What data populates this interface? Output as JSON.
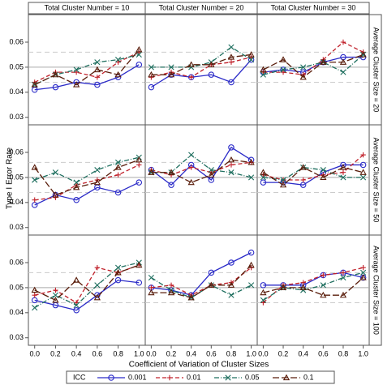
{
  "chart_data": {
    "type": "line",
    "x_label": "Coefficient of Variation of Cluster Sizes",
    "y_label": "Type I Error Rate",
    "legend_title": "ICC",
    "columns": [
      "Total Cluster Number = 10",
      "Total Cluster Number = 20",
      "Total Cluster Number = 30"
    ],
    "rows": [
      "Average Cluster Size = 20",
      "Average Cluster Size = 50",
      "Average Cluster Size = 100"
    ],
    "x": [
      0,
      0.2,
      0.4,
      0.6,
      0.8,
      1
    ],
    "xlim": [
      -0.06,
      1.06
    ],
    "xticks": [
      {
        "value": 0,
        "label": "0.0"
      },
      0.2,
      0.4,
      0.6,
      0.8,
      {
        "value": 1,
        "label": "1.0"
      }
    ],
    "ylim": [
      0.027,
      0.071
    ],
    "yticks": [
      0.03,
      0.04,
      0.05,
      0.06
    ],
    "ref_lines": [
      {
        "value": 0.044,
        "style": "dashed"
      },
      {
        "value": 0.05,
        "style": "solid"
      },
      {
        "value": 0.056,
        "style": "dashed"
      }
    ],
    "series": [
      {
        "name": "0.001",
        "color": "#2b2bc8",
        "marker": "circle",
        "dash": "solid"
      },
      {
        "name": "0.01",
        "color": "#c0202a",
        "marker": "plus",
        "dash": "dashed"
      },
      {
        "name": "0.05",
        "color": "#1f6f5f",
        "marker": "x",
        "dash": "dashdot"
      },
      {
        "name": "0.1",
        "color": "#5a1e0c",
        "marker": "triangle",
        "dash": "longdash"
      }
    ],
    "panels": [
      [
        [
          [
            0.041,
            0.042,
            0.044,
            0.043,
            0.046,
            0.051
          ],
          [
            0.044,
            0.048,
            0.048,
            0.046,
            0.052,
            0.056
          ],
          [
            0.043,
            0.047,
            0.049,
            0.052,
            0.053,
            0.055
          ],
          [
            0.043,
            0.047,
            0.043,
            0.049,
            0.047,
            0.057
          ]
        ],
        [
          [
            0.042,
            0.047,
            0.046,
            0.047,
            0.044,
            0.053
          ],
          [
            0.046,
            0.048,
            0.046,
            0.051,
            0.052,
            0.054
          ],
          [
            0.05,
            0.05,
            0.05,
            0.052,
            0.058,
            0.053
          ],
          [
            0.047,
            0.047,
            0.051,
            0.051,
            0.054,
            0.055
          ]
        ],
        [
          [
            0.048,
            0.049,
            0.048,
            0.052,
            0.054,
            0.054
          ],
          [
            0.048,
            0.048,
            0.047,
            0.053,
            0.06,
            0.056
          ],
          [
            0.047,
            0.049,
            0.05,
            0.052,
            0.048,
            0.055
          ],
          [
            0.049,
            0.053,
            0.046,
            0.052,
            0.052,
            0.055
          ]
        ]
      ],
      [
        [
          [
            0.039,
            0.043,
            0.041,
            0.046,
            0.044,
            0.048
          ],
          [
            0.041,
            0.042,
            0.047,
            0.049,
            0.051,
            0.055
          ],
          [
            0.049,
            0.052,
            0.048,
            0.053,
            0.056,
            0.058
          ],
          [
            0.054,
            0.043,
            0.046,
            0.048,
            0.054,
            0.057
          ]
        ],
        [
          [
            0.053,
            0.047,
            0.055,
            0.049,
            0.062,
            0.057
          ],
          [
            0.053,
            0.051,
            0.054,
            0.052,
            0.055,
            0.056
          ],
          [
            0.052,
            0.052,
            0.059,
            0.053,
            0.052,
            0.05
          ],
          [
            0.052,
            0.052,
            0.048,
            0.051,
            0.057,
            0.056
          ]
        ],
        [
          [
            0.048,
            0.048,
            0.047,
            0.052,
            0.055,
            0.055
          ],
          [
            0.051,
            0.049,
            0.049,
            0.051,
            0.052,
            0.059
          ],
          [
            0.05,
            0.049,
            0.054,
            0.053,
            0.05,
            0.05
          ],
          [
            0.052,
            0.047,
            0.054,
            0.05,
            0.054,
            0.052
          ]
        ]
      ],
      [
        [
          [
            0.045,
            0.043,
            0.041,
            0.047,
            0.053,
            0.052
          ],
          [
            0.047,
            0.049,
            0.044,
            0.058,
            0.056,
            0.059
          ],
          [
            0.042,
            0.047,
            0.043,
            0.051,
            0.058,
            0.06
          ],
          [
            0.049,
            0.045,
            0.053,
            0.046,
            0.056,
            0.059
          ]
        ],
        [
          [
            0.05,
            0.049,
            0.047,
            0.056,
            0.06,
            0.064
          ],
          [
            0.05,
            0.051,
            0.047,
            0.051,
            0.052,
            0.058
          ],
          [
            0.054,
            0.049,
            0.046,
            0.051,
            0.047,
            0.051
          ],
          [
            0.048,
            0.048,
            0.046,
            0.051,
            0.051,
            0.059
          ]
        ],
        [
          [
            0.051,
            0.051,
            0.051,
            0.055,
            0.056,
            0.054
          ],
          [
            0.044,
            0.051,
            0.052,
            0.055,
            0.056,
            0.058
          ],
          [
            0.045,
            0.05,
            0.049,
            0.051,
            0.054,
            0.056
          ],
          [
            0.048,
            0.05,
            0.05,
            0.047,
            0.047,
            0.054
          ]
        ]
      ]
    ]
  }
}
